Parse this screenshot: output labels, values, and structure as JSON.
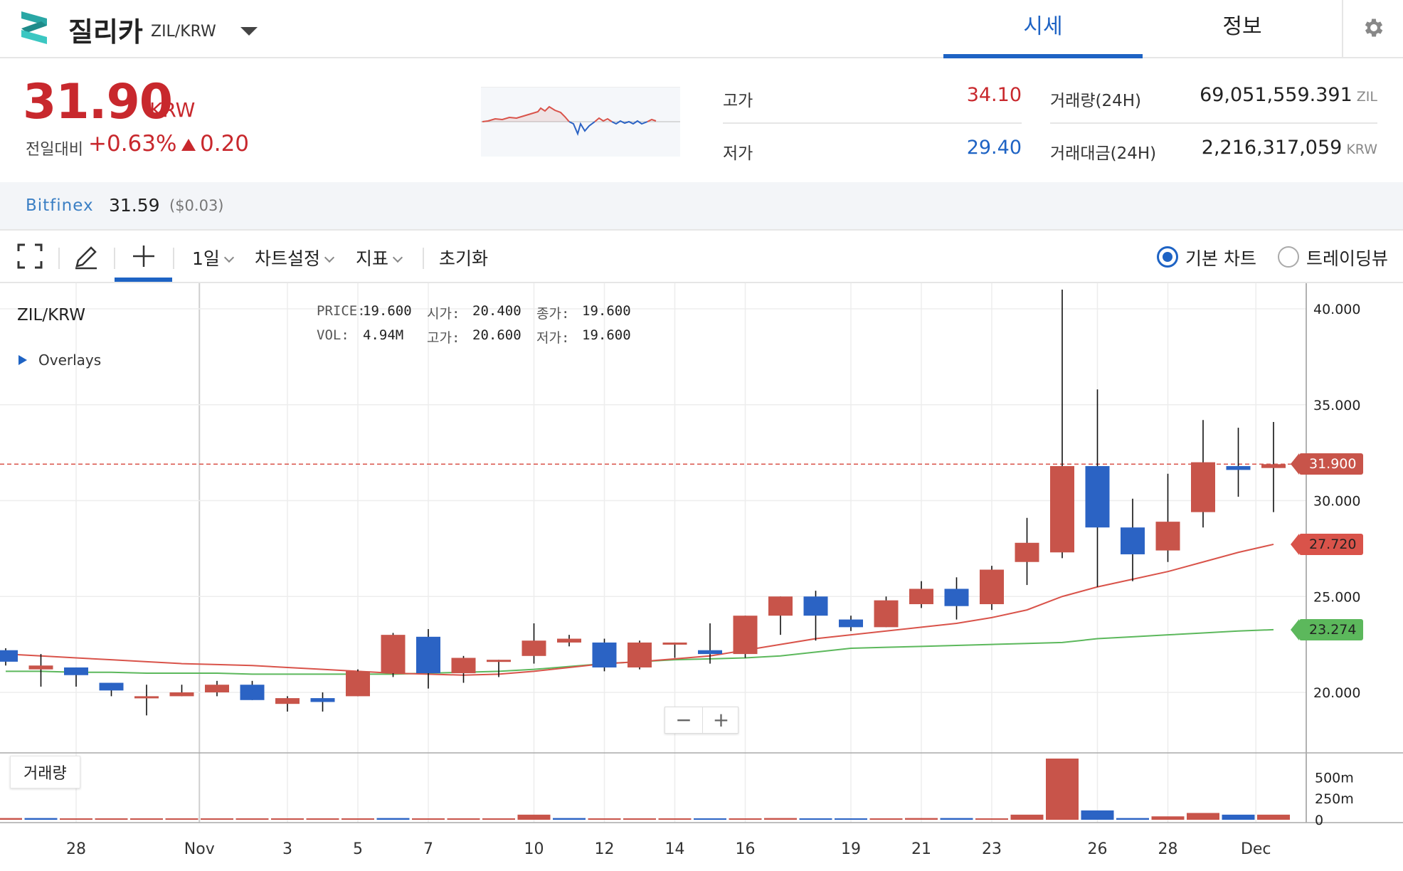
{
  "header": {
    "coin_name": "질리카",
    "pair": "ZIL/KRW",
    "tabs": [
      {
        "label": "시세"
      },
      {
        "label": "정보"
      }
    ]
  },
  "summary": {
    "price": "31.90",
    "price_unit": "KRW",
    "change_label": "전일대비",
    "change_pct": "+0.63%",
    "change_amt": "0.20",
    "high_label": "고가",
    "high_value": "34.10",
    "low_label": "저가",
    "low_value": "29.40",
    "volume_label": "거래량(24H)",
    "volume_value": "69,051,559.391",
    "volume_unit": "ZIL",
    "amount_label": "거래대금(24H)",
    "amount_value": "2,216,317,059",
    "amount_unit": "KRW"
  },
  "exchange": {
    "name": "Bitfinex",
    "price": "31.59",
    "usd": "($0.03)"
  },
  "toolbar": {
    "period": "1일",
    "chart_settings": "차트설정",
    "indicators": "지표",
    "reset": "초기화",
    "radio_basic": "기본 차트",
    "radio_tradingview": "트레이딩뷰"
  },
  "chart": {
    "title": "ZIL/KRW",
    "overlays": "Overlays",
    "info": {
      "price_label": "PRICE:",
      "price": "19.600",
      "vol_label": "VOL:",
      "vol": "4.94M",
      "open_label": "시가:",
      "open": "20.400",
      "high_label": "고가:",
      "high": "20.600",
      "close_label": "종가:",
      "close": "19.600",
      "low_label": "저가:",
      "low": "19.600"
    },
    "volume_label": "거래량",
    "zoom_minus": "−",
    "zoom_plus": "+",
    "tags": {
      "current": "31.900",
      "ma_red": "27.720",
      "ma_green": "23.274"
    }
  },
  "colors": {
    "up": "#c8544a",
    "down": "#2b63c4",
    "ma_short": "#d9534a",
    "ma_long": "#5cb85c",
    "accent": "#1e63c4"
  },
  "chart_data": {
    "type": "candlestick",
    "title": "ZIL/KRW",
    "y_ticks": [
      "40.000",
      "35.000",
      "30.000",
      "25.000",
      "20.000"
    ],
    "ylim": [
      19.0,
      41.0
    ],
    "volume_ticks": [
      "500m",
      "250m",
      "0"
    ],
    "x_tick_labels": [
      "28",
      "Nov",
      "3",
      "5",
      "7",
      "10",
      "12",
      "14",
      "16",
      "19",
      "21",
      "23",
      "26",
      "28",
      "Dec"
    ],
    "current_price": 31.9,
    "candles": [
      {
        "o": 22.2,
        "h": 22.3,
        "l": 21.4,
        "c": 21.6
      },
      {
        "o": 21.2,
        "h": 22.0,
        "l": 20.3,
        "c": 21.4
      },
      {
        "o": 21.3,
        "h": 21.3,
        "l": 20.3,
        "c": 20.9
      },
      {
        "o": 20.5,
        "h": 20.5,
        "l": 19.8,
        "c": 20.1
      },
      {
        "o": 19.8,
        "h": 20.4,
        "l": 18.8,
        "c": 19.8
      },
      {
        "o": 19.8,
        "h": 20.4,
        "l": 19.8,
        "c": 20.0
      },
      {
        "o": 20.0,
        "h": 20.6,
        "l": 19.8,
        "c": 20.4
      },
      {
        "o": 20.4,
        "h": 20.6,
        "l": 19.6,
        "c": 19.6
      },
      {
        "o": 19.4,
        "h": 19.8,
        "l": 19.0,
        "c": 19.7
      },
      {
        "o": 19.7,
        "h": 20.0,
        "l": 19.0,
        "c": 19.5
      },
      {
        "o": 19.8,
        "h": 21.2,
        "l": 19.8,
        "c": 21.1
      },
      {
        "o": 21.0,
        "h": 23.1,
        "l": 20.8,
        "c": 23.0
      },
      {
        "o": 22.9,
        "h": 23.3,
        "l": 20.2,
        "c": 21.0
      },
      {
        "o": 21.0,
        "h": 21.9,
        "l": 20.5,
        "c": 21.8
      },
      {
        "o": 21.7,
        "h": 21.7,
        "l": 20.8,
        "c": 21.7
      },
      {
        "o": 21.9,
        "h": 23.6,
        "l": 21.5,
        "c": 22.7
      },
      {
        "o": 22.6,
        "h": 23.0,
        "l": 22.4,
        "c": 22.8
      },
      {
        "o": 22.6,
        "h": 22.8,
        "l": 21.1,
        "c": 21.3
      },
      {
        "o": 21.3,
        "h": 22.7,
        "l": 21.2,
        "c": 22.6
      },
      {
        "o": 22.6,
        "h": 22.6,
        "l": 21.8,
        "c": 22.6
      },
      {
        "o": 22.2,
        "h": 23.6,
        "l": 21.5,
        "c": 22.0
      },
      {
        "o": 22.0,
        "h": 24.0,
        "l": 21.8,
        "c": 24.0
      },
      {
        "o": 24.0,
        "h": 25.0,
        "l": 23.0,
        "c": 25.0
      },
      {
        "o": 25.0,
        "h": 25.3,
        "l": 22.7,
        "c": 24.0
      },
      {
        "o": 23.8,
        "h": 24.0,
        "l": 23.2,
        "c": 23.4
      },
      {
        "o": 23.4,
        "h": 25.0,
        "l": 23.4,
        "c": 24.8
      },
      {
        "o": 24.6,
        "h": 25.8,
        "l": 24.4,
        "c": 25.4
      },
      {
        "o": 25.4,
        "h": 26.0,
        "l": 23.8,
        "c": 24.5
      },
      {
        "o": 24.6,
        "h": 26.6,
        "l": 24.3,
        "c": 26.4
      },
      {
        "o": 26.8,
        "h": 29.1,
        "l": 25.6,
        "c": 27.8
      },
      {
        "o": 27.3,
        "h": 41.0,
        "l": 27.0,
        "c": 31.8
      },
      {
        "o": 31.8,
        "h": 35.8,
        "l": 25.5,
        "c": 28.6
      },
      {
        "o": 28.6,
        "h": 30.1,
        "l": 25.8,
        "c": 27.2
      },
      {
        "o": 27.4,
        "h": 31.4,
        "l": 26.8,
        "c": 28.9
      },
      {
        "o": 29.4,
        "h": 34.2,
        "l": 28.6,
        "c": 32.0
      },
      {
        "o": 31.8,
        "h": 33.8,
        "l": 30.2,
        "c": 31.6
      },
      {
        "o": 31.7,
        "h": 34.1,
        "l": 29.4,
        "c": 31.9
      }
    ],
    "ma_short": [
      22.0,
      21.9,
      21.8,
      21.7,
      21.6,
      21.5,
      21.45,
      21.4,
      21.3,
      21.2,
      21.1,
      21.0,
      20.95,
      20.9,
      20.95,
      21.1,
      21.3,
      21.5,
      21.6,
      21.75,
      21.9,
      22.2,
      22.5,
      22.8,
      23.0,
      23.2,
      23.4,
      23.6,
      23.9,
      24.3,
      25.0,
      25.5,
      25.9,
      26.3,
      26.8,
      27.3,
      27.72
    ],
    "ma_long": [
      21.1,
      21.1,
      21.05,
      21.05,
      21.0,
      21.0,
      21.0,
      20.95,
      20.95,
      20.95,
      20.95,
      20.95,
      21.0,
      21.05,
      21.1,
      21.2,
      21.35,
      21.5,
      21.6,
      21.7,
      21.75,
      21.8,
      21.9,
      22.1,
      22.3,
      22.35,
      22.4,
      22.45,
      22.5,
      22.55,
      22.6,
      22.8,
      22.9,
      23.0,
      23.1,
      23.2,
      23.27
    ],
    "volumes": [
      0.02,
      0.02,
      0.0,
      0.0,
      0.0,
      0.0,
      0.0,
      0.0,
      0.0,
      0.01,
      0.01,
      0.02,
      0.01,
      0.01,
      0.01,
      0.06,
      0.02,
      0.01,
      0.01,
      0.0,
      0.01,
      0.01,
      0.02,
      0.01,
      0.01,
      0.01,
      0.02,
      0.02,
      0.01,
      0.06,
      0.72,
      0.11,
      0.02,
      0.04,
      0.08,
      0.06,
      0.06
    ],
    "volume_dir": [
      "up",
      "down",
      "up",
      "up",
      "up",
      "up",
      "up",
      "up",
      "up",
      "up",
      "up",
      "down",
      "up",
      "up",
      "up",
      "up",
      "down",
      "up",
      "up",
      "up",
      "down",
      "up",
      "up",
      "down",
      "down",
      "up",
      "up",
      "down",
      "up",
      "up",
      "up",
      "down",
      "down",
      "up",
      "up",
      "down",
      "up"
    ]
  }
}
